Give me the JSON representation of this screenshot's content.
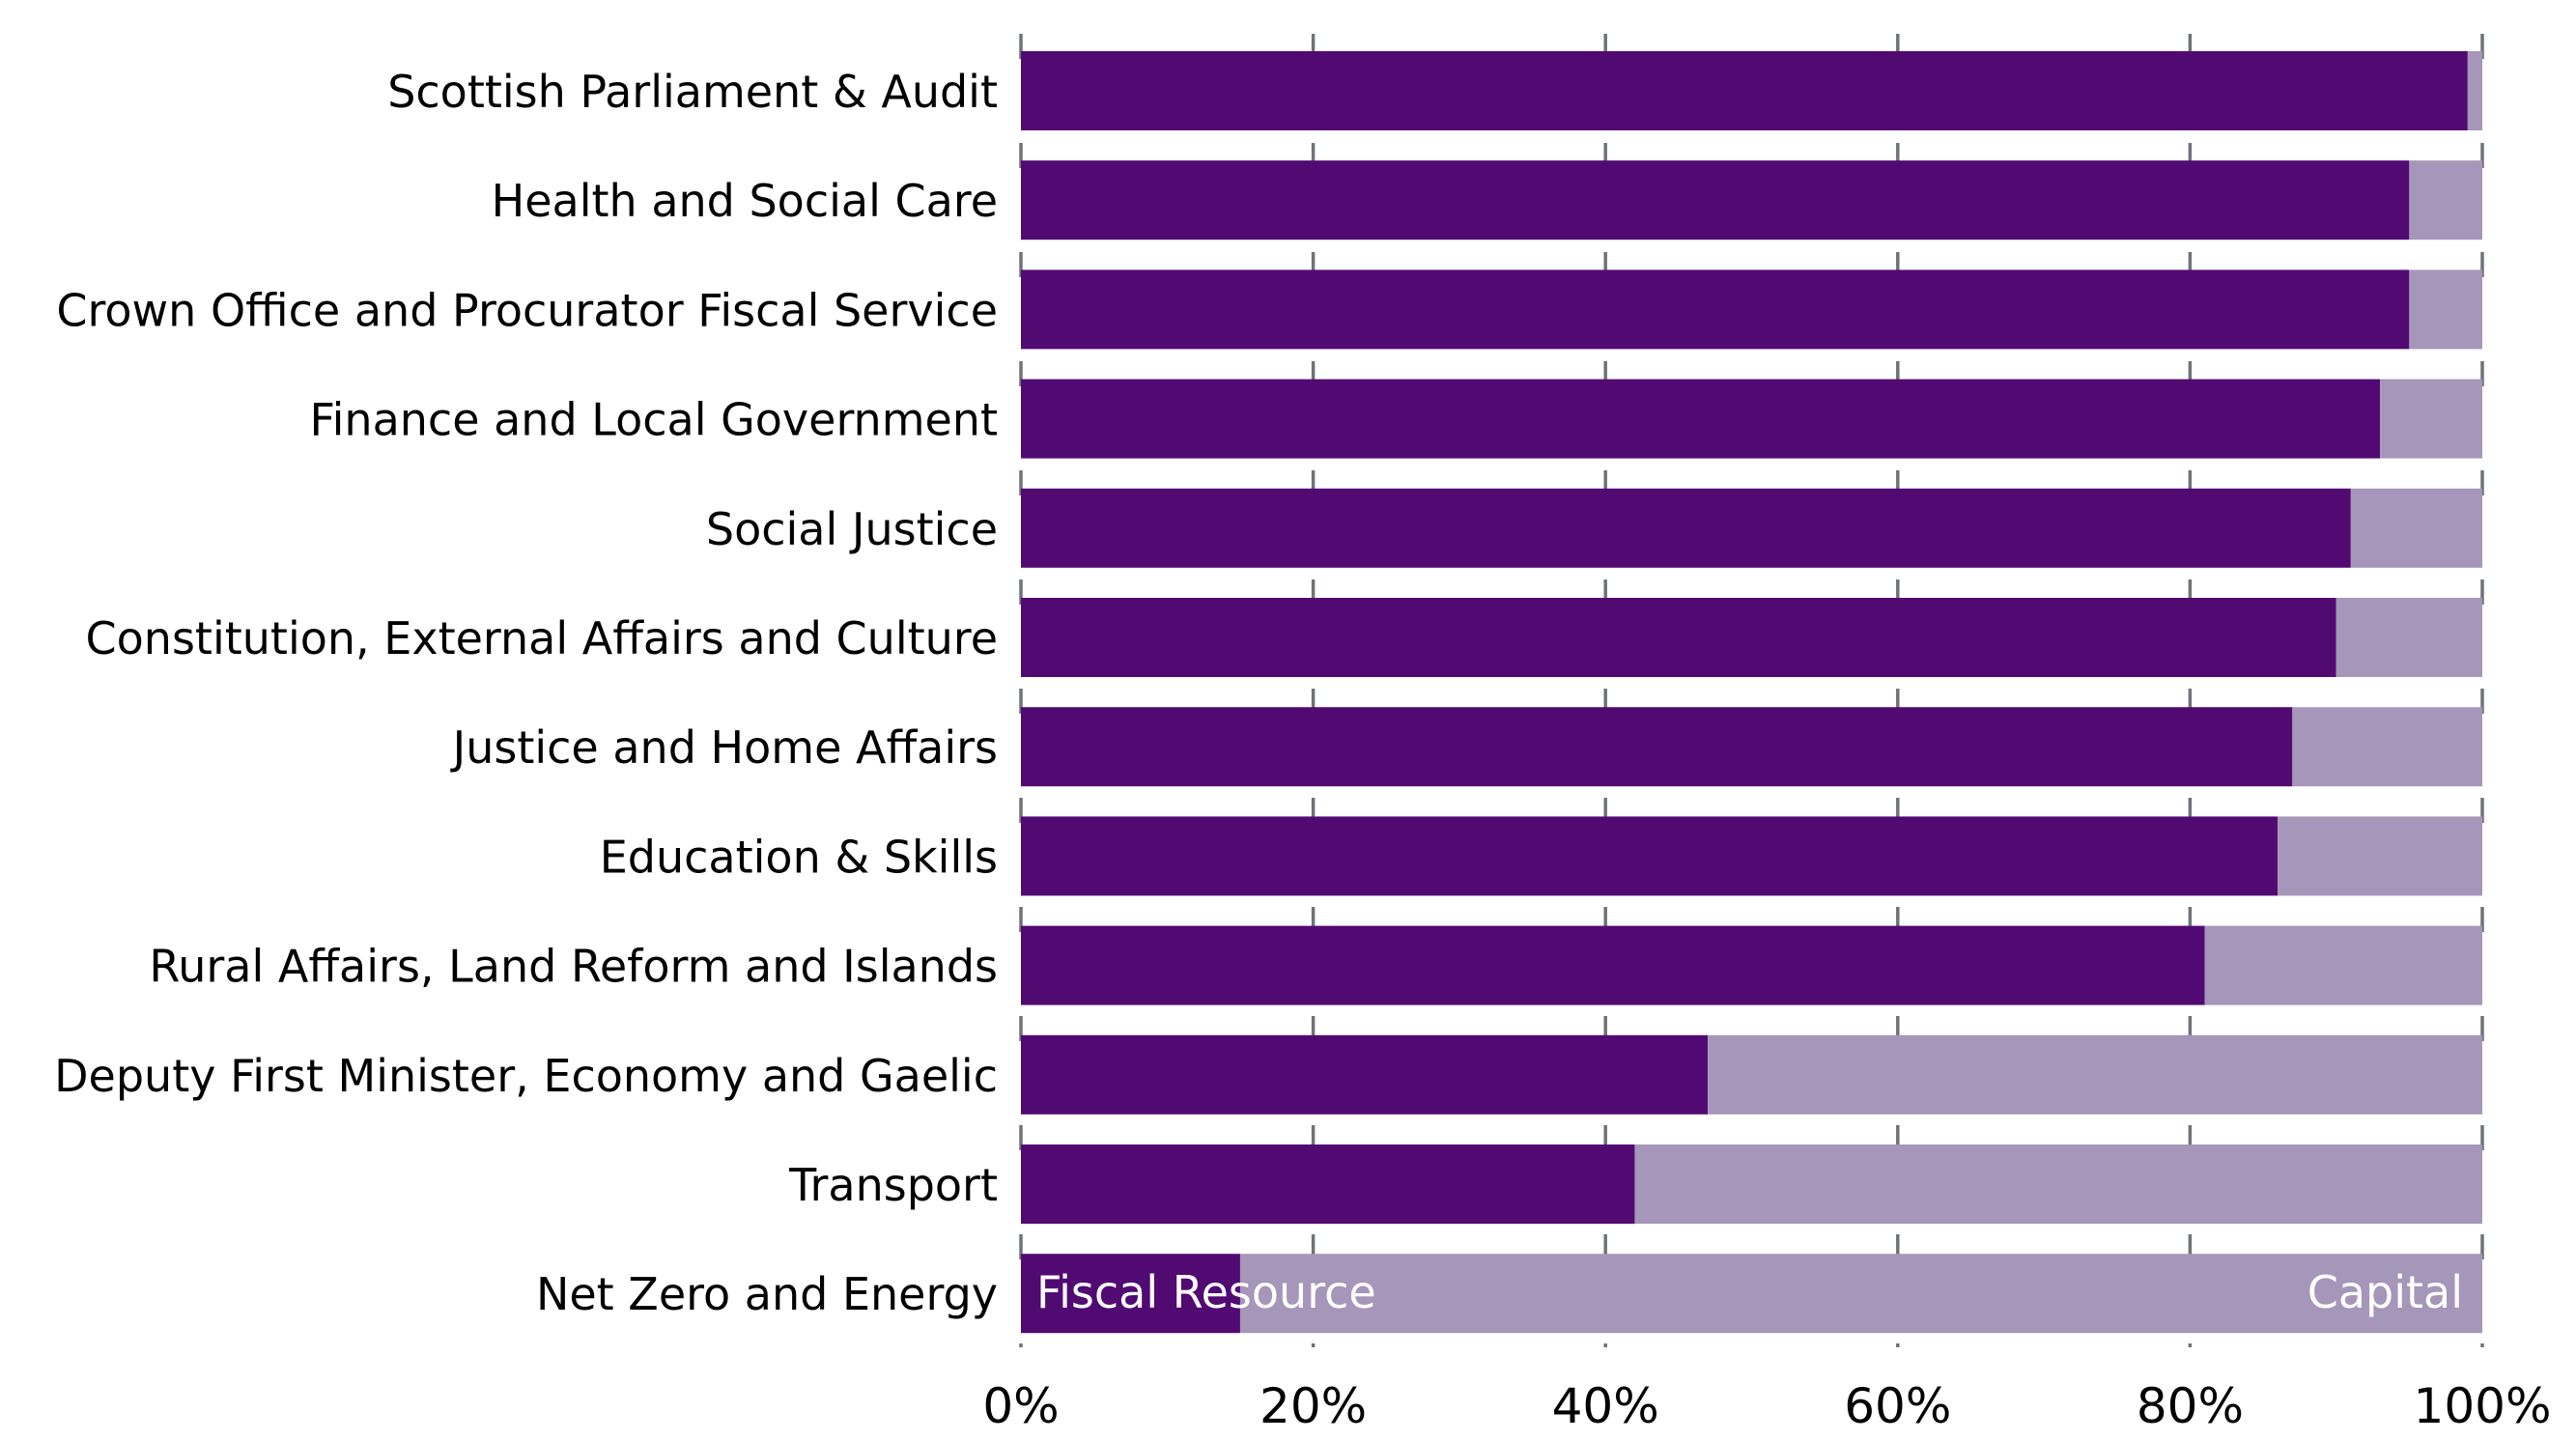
{
  "chart_data": {
    "type": "bar",
    "orientation": "horizontal",
    "stacked": true,
    "categories": [
      "Scottish Parliament & Audit",
      "Health and Social Care",
      "Crown Office and Procurator Fiscal Service",
      "Finance and Local Government",
      "Social Justice",
      "Constitution, External Affairs and Culture",
      "Justice and Home Affairs",
      "Education & Skills",
      "Rural Affairs, Land Reform and Islands",
      "Deputy First Minister, Economy and Gaelic",
      "Transport",
      "Net Zero and Energy"
    ],
    "series": [
      {
        "name": "Fiscal Resource",
        "color": "#520a73",
        "values": [
          99,
          95,
          95,
          93,
          91,
          90,
          87,
          86,
          81,
          47,
          42,
          15
        ]
      },
      {
        "name": "Capital",
        "color": "#a696b9",
        "values": [
          1,
          5,
          5,
          7,
          9,
          10,
          13,
          14,
          19,
          53,
          58,
          85
        ]
      }
    ],
    "xlim": [
      0,
      100
    ],
    "x_ticks": [
      "0%",
      "20%",
      "40%",
      "60%",
      "80%",
      "100%"
    ],
    "x_tick_values": [
      0,
      20,
      40,
      60,
      80,
      100
    ],
    "grid": "vertical dashed",
    "legend": "inline labels inside bottom bar"
  }
}
